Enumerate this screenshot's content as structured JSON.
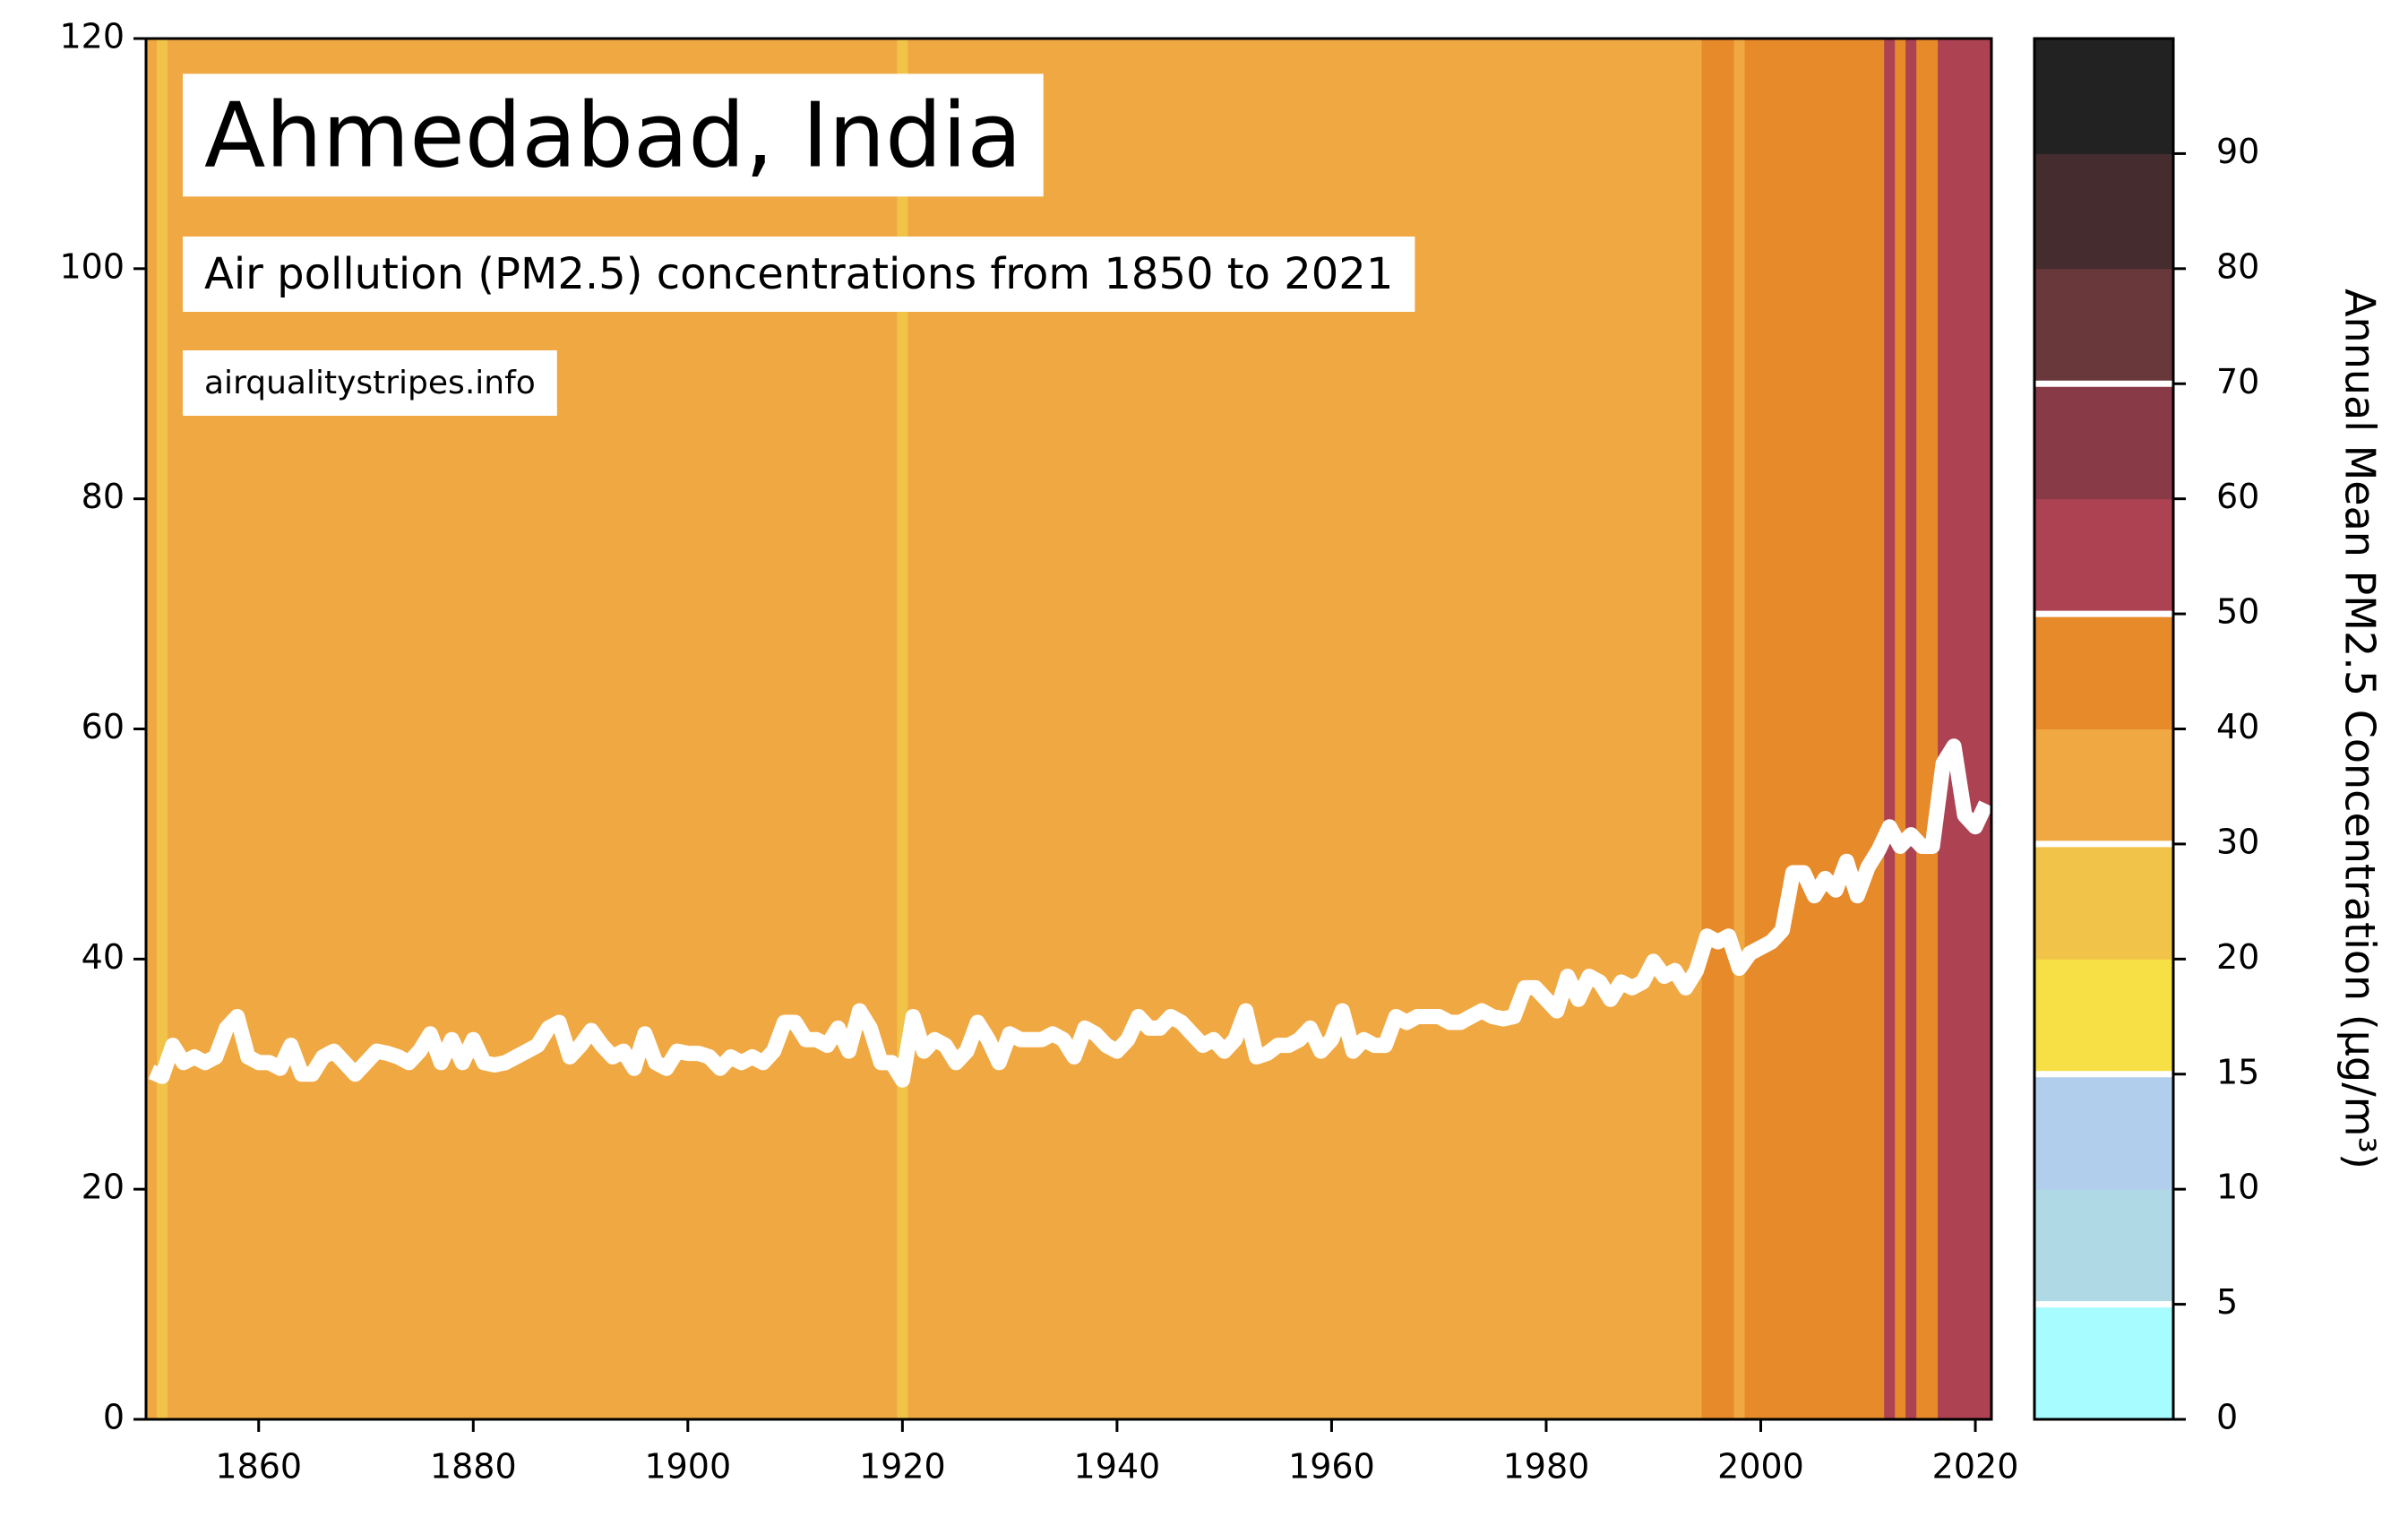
{
  "chart_data": {
    "type": "stripes-line",
    "title": "Ahmedabad, India",
    "subtitle": "Air pollution (PM2.5) concentrations from 1850 to 2021",
    "source": "airqualitystripes.info",
    "x": [
      1850,
      1851,
      1852,
      1853,
      1854,
      1855,
      1856,
      1857,
      1858,
      1859,
      1860,
      1861,
      1862,
      1863,
      1864,
      1865,
      1866,
      1867,
      1868,
      1869,
      1870,
      1871,
      1872,
      1873,
      1874,
      1875,
      1876,
      1877,
      1878,
      1879,
      1880,
      1881,
      1882,
      1883,
      1884,
      1885,
      1886,
      1887,
      1888,
      1889,
      1890,
      1891,
      1892,
      1893,
      1894,
      1895,
      1896,
      1897,
      1898,
      1899,
      1900,
      1901,
      1902,
      1903,
      1904,
      1905,
      1906,
      1907,
      1908,
      1909,
      1910,
      1911,
      1912,
      1913,
      1914,
      1915,
      1916,
      1917,
      1918,
      1919,
      1920,
      1921,
      1922,
      1923,
      1924,
      1925,
      1926,
      1927,
      1928,
      1929,
      1930,
      1931,
      1932,
      1933,
      1934,
      1935,
      1936,
      1937,
      1938,
      1939,
      1940,
      1941,
      1942,
      1943,
      1944,
      1945,
      1946,
      1947,
      1948,
      1949,
      1950,
      1951,
      1952,
      1953,
      1954,
      1955,
      1956,
      1957,
      1958,
      1959,
      1960,
      1961,
      1962,
      1963,
      1964,
      1965,
      1966,
      1967,
      1968,
      1969,
      1970,
      1971,
      1972,
      1973,
      1974,
      1975,
      1976,
      1977,
      1978,
      1979,
      1980,
      1981,
      1982,
      1983,
      1984,
      1985,
      1986,
      1987,
      1988,
      1989,
      1990,
      1991,
      1992,
      1993,
      1994,
      1995,
      1996,
      1997,
      1998,
      1999,
      2000,
      2001,
      2002,
      2003,
      2004,
      2005,
      2006,
      2007,
      2008,
      2009,
      2010,
      2011,
      2012,
      2013,
      2014,
      2015,
      2016,
      2017,
      2018,
      2019,
      2020,
      2021
    ],
    "values": [
      30.2,
      29.8,
      32.5,
      31,
      31.5,
      31,
      31.5,
      34,
      35,
      31.5,
      31,
      31,
      30.5,
      32.5,
      30,
      30,
      31.5,
      32,
      31,
      30,
      31,
      32,
      31.8,
      31.5,
      31,
      32,
      33.5,
      31,
      33,
      31,
      33,
      31,
      30.8,
      31,
      31.5,
      32,
      32.5,
      34,
      34.5,
      31.5,
      32.5,
      33.8,
      32.5,
      31.5,
      32,
      30.5,
      33.5,
      31,
      30.5,
      32,
      31.8,
      31.8,
      31.5,
      30.5,
      31.5,
      31,
      31.5,
      31,
      32,
      34.5,
      34.5,
      33,
      33,
      32.5,
      34,
      32,
      35.5,
      34,
      31,
      31,
      29.5,
      35,
      32,
      33,
      32.5,
      31,
      32,
      34.5,
      33,
      31,
      33.5,
      33,
      33,
      33,
      33.5,
      33,
      31.5,
      34,
      33.5,
      32.5,
      32,
      33,
      35,
      34,
      34,
      35,
      34.5,
      33.5,
      32.5,
      33,
      32,
      33,
      35.5,
      31.5,
      31.8,
      32.5,
      32.5,
      33,
      34,
      32,
      33,
      35.5,
      32,
      33,
      32.5,
      32.5,
      35,
      34.5,
      35,
      35,
      35,
      34.5,
      34.5,
      35,
      35.5,
      35,
      34.8,
      35,
      37.5,
      37.5,
      36.5,
      35.5,
      38.5,
      36.5,
      38.5,
      38,
      36.5,
      38,
      37.5,
      38,
      39.8,
      38.5,
      39,
      37.5,
      39,
      42,
      41.5,
      42,
      39.2,
      40.5,
      41,
      41.5,
      42.5,
      47.5,
      47.5,
      45.5,
      47,
      46,
      48.5,
      45.5,
      48,
      49.5,
      51.5,
      49.8,
      50.8,
      49.8,
      49.8,
      57,
      58.5,
      52.5,
      51.5,
      53.5
    ],
    "line_color": "#ffffff",
    "xlim": [
      1849.5,
      2021.5
    ],
    "xticks": [
      1860,
      1880,
      1900,
      1920,
      1940,
      1960,
      1980,
      2000,
      2020
    ],
    "ylim": [
      0,
      120
    ],
    "yticks": [
      0,
      20,
      40,
      60,
      80,
      100,
      120
    ],
    "colorbar": {
      "label": "Annual Mean PM2.5 Concentration (µg/m³)",
      "ticks": [
        0,
        5,
        10,
        15,
        20,
        30,
        40,
        50,
        60,
        70,
        80,
        90
      ],
      "colors": [
        "#a6fcff",
        "#b0d9e6",
        "#b1cfec",
        "#f7e046",
        "#f2c349",
        "#f0a842",
        "#e68a2a",
        "#ac4252",
        "#883a46",
        "#68383b",
        "#442c2f",
        "#222222"
      ],
      "guides": [
        5,
        15,
        30,
        50,
        70
      ]
    }
  }
}
